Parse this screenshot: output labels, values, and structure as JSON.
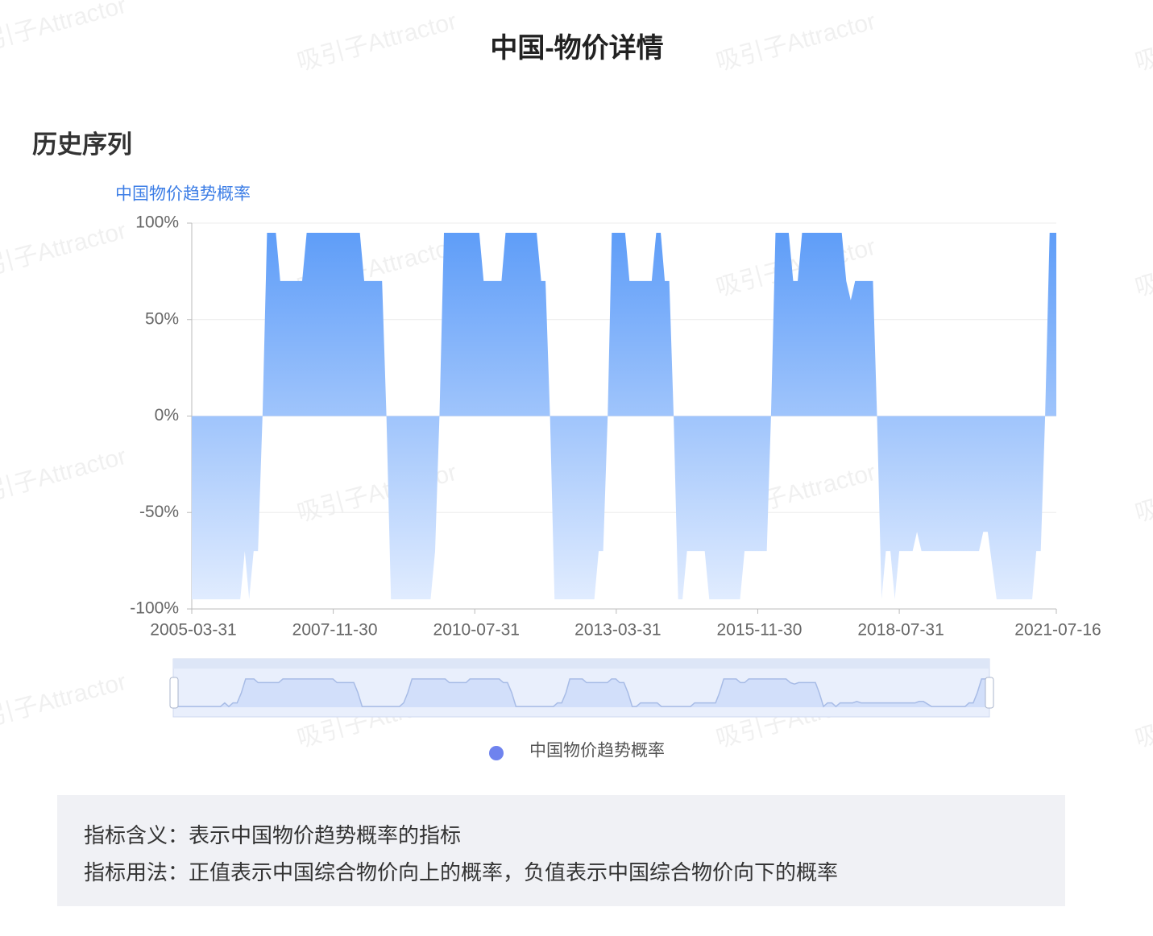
{
  "header": {
    "title": "中国-物价详情"
  },
  "section": {
    "title": "历史序列"
  },
  "watermark": "吸引子Attractor",
  "chart_data": {
    "type": "area",
    "y_axis_label": "中国物价趋势概率",
    "x": [
      "2005-03-31",
      "2006-02-28",
      "2006-03-31",
      "2006-04-30",
      "2006-05-31",
      "2006-06-30",
      "2006-07-31",
      "2006-08-31",
      "2006-10-31",
      "2006-11-30",
      "2007-04-30",
      "2007-05-31",
      "2008-05-31",
      "2008-06-30",
      "2008-10-31",
      "2008-11-30",
      "2008-12-31",
      "2009-09-30",
      "2009-10-31",
      "2009-11-30",
      "2009-12-31",
      "2010-08-31",
      "2010-09-30",
      "2011-01-31",
      "2011-02-28",
      "2011-09-30",
      "2011-10-31",
      "2011-11-30",
      "2011-12-31",
      "2012-01-31",
      "2012-10-31",
      "2012-11-30",
      "2012-12-31",
      "2013-01-31",
      "2013-02-28",
      "2013-05-31",
      "2013-06-30",
      "2013-11-30",
      "2013-12-31",
      "2014-01-31",
      "2014-02-28",
      "2014-03-31",
      "2014-04-30",
      "2014-05-31",
      "2014-06-30",
      "2014-07-31",
      "2014-11-30",
      "2014-12-31",
      "2015-07-31",
      "2015-08-31",
      "2016-01-31",
      "2016-02-29",
      "2016-03-31",
      "2016-06-30",
      "2016-07-31",
      "2016-08-31",
      "2016-09-30",
      "2017-06-30",
      "2017-07-31",
      "2017-08-31",
      "2017-09-30",
      "2018-01-31",
      "2018-02-28",
      "2018-03-31",
      "2018-04-30",
      "2018-05-31",
      "2018-06-30",
      "2018-07-31",
      "2018-10-31",
      "2018-11-30",
      "2018-12-31",
      "2020-01-31",
      "2020-02-29",
      "2020-03-31",
      "2020-05-31",
      "2021-01-31",
      "2021-02-28",
      "2021-03-31",
      "2021-04-30",
      "2021-05-31",
      "2021-07-16"
    ],
    "series": [
      {
        "name": "中国物价趋势概率",
        "color": "#5b9bf8",
        "legend_color": "#6f83ee",
        "values": [
          -95,
          -95,
          -70,
          -95,
          -70,
          -70,
          0,
          95,
          95,
          70,
          70,
          95,
          95,
          70,
          70,
          0,
          -95,
          -95,
          -70,
          0,
          95,
          95,
          70,
          70,
          95,
          95,
          70,
          70,
          0,
          -95,
          -95,
          -70,
          -70,
          0,
          95,
          95,
          70,
          70,
          95,
          95,
          70,
          70,
          0,
          -95,
          -95,
          -70,
          -70,
          -95,
          -95,
          -70,
          -70,
          0,
          95,
          95,
          70,
          70,
          95,
          95,
          70,
          60,
          70,
          70,
          0,
          -95,
          -70,
          -70,
          -95,
          -70,
          -70,
          -60,
          -70,
          -70,
          -60,
          -60,
          -95,
          -95,
          -70,
          -70,
          0,
          95,
          95
        ]
      }
    ],
    "xlim": [
      "2005-03-31",
      "2021-07-16"
    ],
    "xticks": [
      "2005-03-31",
      "2007-11-30",
      "2010-07-31",
      "2013-03-31",
      "2015-11-30",
      "2018-07-31",
      "2021-07-16"
    ],
    "ylim": [
      -100,
      100
    ],
    "yticks": [
      {
        "value": -100,
        "label": "-100%"
      },
      {
        "value": -50,
        "label": "-50%"
      },
      {
        "value": 0,
        "label": "0%"
      },
      {
        "value": 50,
        "label": "50%"
      },
      {
        "value": 100,
        "label": "100%"
      }
    ],
    "grid": true
  },
  "info": {
    "lines": [
      "指标含义：表示中国物价趋势概率的指标",
      "指标用法：正值表示中国综合物价向上的概率，负值表示中国综合物价向下的概率"
    ]
  }
}
